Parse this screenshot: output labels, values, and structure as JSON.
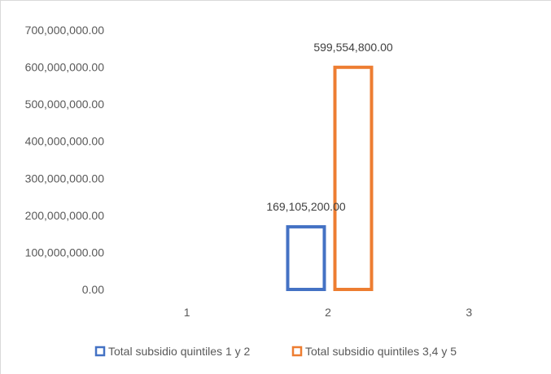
{
  "chart_data": {
    "type": "bar",
    "categories": [
      "1",
      "2",
      "3"
    ],
    "y_ticks": [
      "0.00",
      "100,000,000.00",
      "200,000,000.00",
      "300,000,000.00",
      "400,000,000.00",
      "500,000,000.00",
      "600,000,000.00",
      "700,000,000.00"
    ],
    "ylim": [
      0,
      700000000
    ],
    "grid": false,
    "legend_position": "bottom",
    "series": [
      {
        "name": "Total subsidio quintiles 1 y 2",
        "color": "#4472c4",
        "values": [
          null,
          169105200,
          null
        ],
        "labels": [
          "",
          "169,105,200.00",
          ""
        ]
      },
      {
        "name": "Total subsidio quintiles 3,4 y 5",
        "color": "#ed7d31",
        "values": [
          null,
          599554800,
          null
        ],
        "labels": [
          "",
          "599,554,800.00",
          ""
        ]
      }
    ]
  }
}
